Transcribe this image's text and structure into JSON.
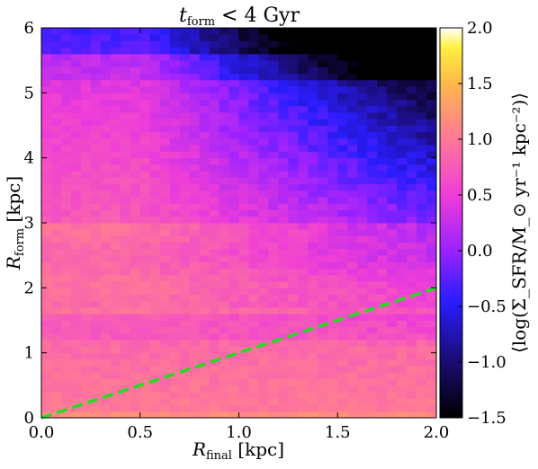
{
  "chart_data": {
    "type": "heatmap",
    "title": "t_form < 4 Gyr",
    "title_parts": {
      "var": "t",
      "sub": "form",
      "rest": " < 4 Gyr"
    },
    "xlabel_parts": {
      "var": "R",
      "sub": "final",
      "rest": " [kpc]"
    },
    "ylabel_parts": {
      "var": "R",
      "sub": "form",
      "rest": " [kpc]"
    },
    "colorbar_label": "⟨log(Σ_SFR/M_⊙ yr⁻¹ kpc⁻²)⟩",
    "xlim": [
      0.0,
      2.0
    ],
    "ylim": [
      0,
      6
    ],
    "x_ticks": [
      "0.0",
      "0.5",
      "1.0",
      "1.5",
      "2.0"
    ],
    "x_tick_values": [
      0.0,
      0.5,
      1.0,
      1.5,
      2.0
    ],
    "y_ticks": [
      "0",
      "1",
      "2",
      "3",
      "4",
      "5",
      "6"
    ],
    "y_tick_values": [
      0,
      1,
      2,
      3,
      4,
      5,
      6
    ],
    "colorbar_range": [
      -1.5,
      2.0
    ],
    "colorbar_ticks": [
      "-1.5",
      "-1.0",
      "-0.5",
      "0.0",
      "0.5",
      "1.0",
      "1.5",
      "2.0"
    ],
    "colorbar_tick_values": [
      -1.5,
      -1.0,
      -0.5,
      0.0,
      0.5,
      1.0,
      1.5,
      2.0
    ],
    "colormap": "plasma-like (black-blue-magenta-orange-yellow-white)",
    "grid": {
      "nx": 40,
      "ny": 60
    },
    "reference_line": {
      "style": "dashed",
      "color": "#22dd22",
      "points": [
        [
          0.0,
          0.0
        ],
        [
          2.0,
          2.0
        ]
      ]
    }
  }
}
